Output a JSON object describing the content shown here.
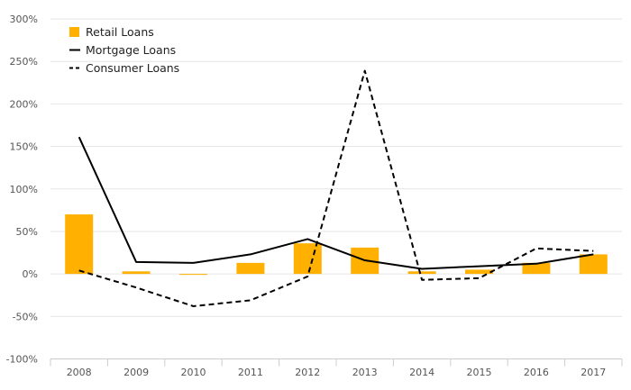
{
  "chart_data": {
    "type": "bar",
    "categories": [
      "2008",
      "2009",
      "2010",
      "2011",
      "2012",
      "2013",
      "2014",
      "2015",
      "2016",
      "2017"
    ],
    "series": [
      {
        "name": "Retail Loans",
        "type": "bar",
        "values": [
          70,
          3,
          -1,
          13,
          36,
          31,
          3,
          5,
          13,
          23
        ]
      },
      {
        "name": "Mortgage Loans",
        "type": "line",
        "values": [
          161,
          14,
          13,
          23,
          41,
          16,
          6,
          9,
          12,
          23
        ]
      },
      {
        "name": "Consumer Loans",
        "type": "line-dashed",
        "values": [
          4,
          -16,
          -38,
          -31,
          -3,
          239,
          -7,
          -5,
          30,
          27
        ]
      }
    ],
    "y_ticks": [
      "300%",
      "250%",
      "200%",
      "150%",
      "100%",
      "50%",
      "0%",
      "-50%",
      "-100%"
    ],
    "ylim": [
      -100,
      300
    ],
    "grid": true,
    "legend": "top-left",
    "colors": {
      "bar": "#FFB000",
      "mortgage": "#000000",
      "consumer": "#000000",
      "grid": "#E6E6E6"
    }
  }
}
